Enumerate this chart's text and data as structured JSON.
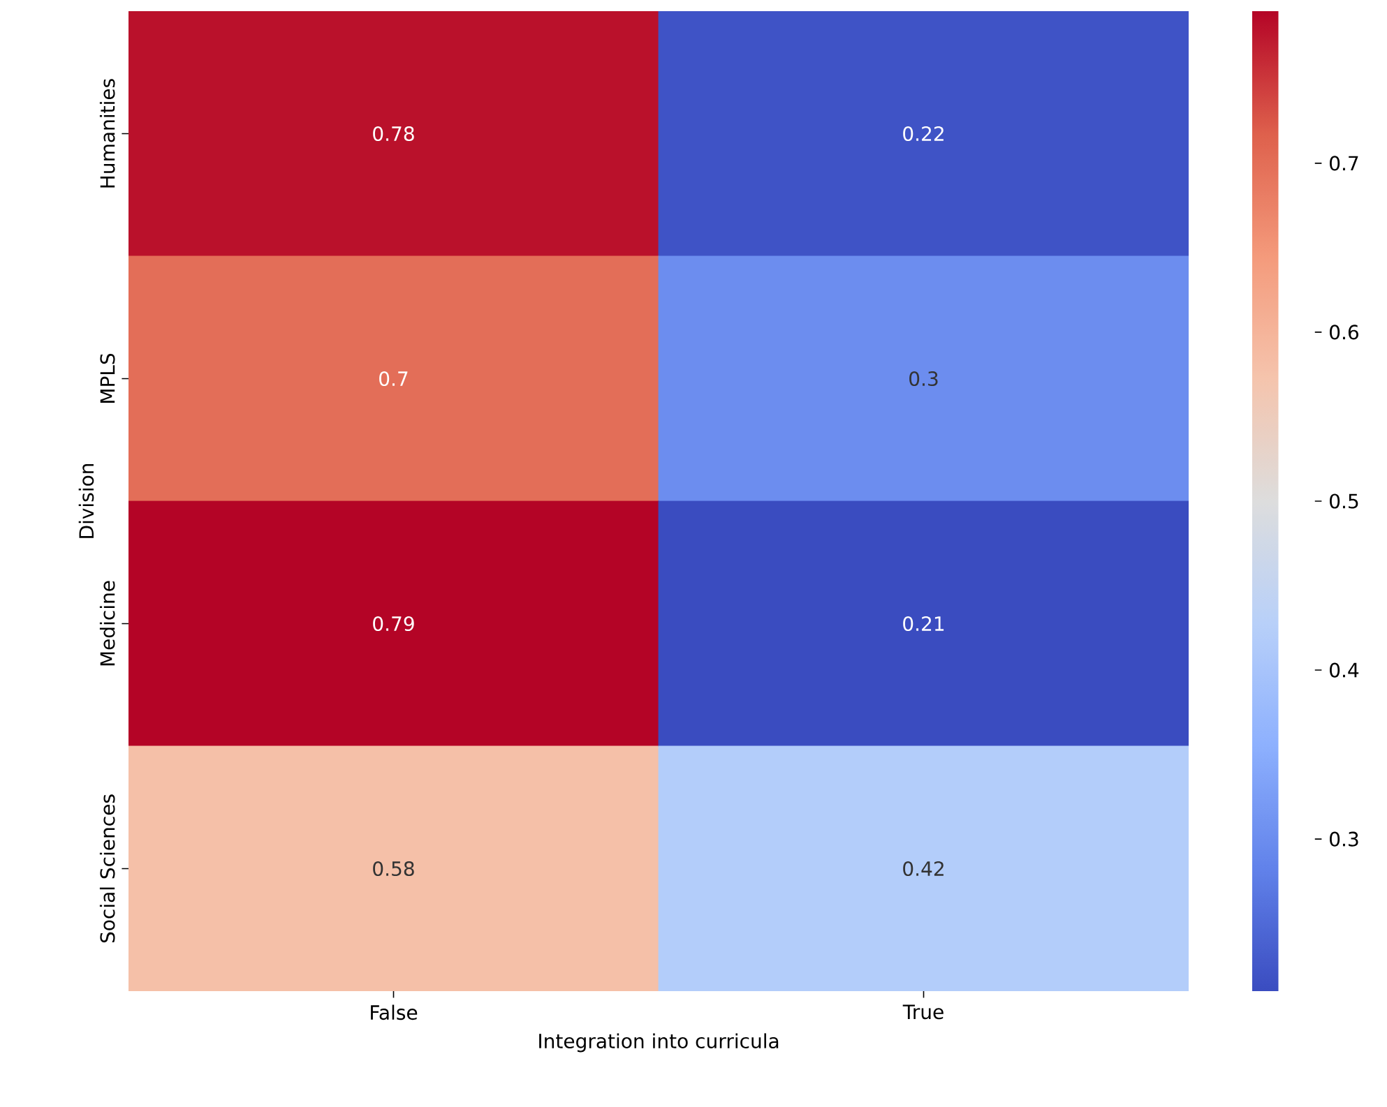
{
  "chart_data": {
    "type": "heatmap",
    "xlabel": "Integration into curricula",
    "ylabel": "Division",
    "categories": [
      "False",
      "True"
    ],
    "y_categories": [
      "Humanities",
      "MPLS",
      "Medicine",
      "Social Sciences"
    ],
    "cells": [
      [
        0.78,
        0.22
      ],
      [
        0.7,
        0.3
      ],
      [
        0.79,
        0.21
      ],
      [
        0.58,
        0.42
      ]
    ],
    "clim": [
      0.21,
      0.79
    ],
    "cticks": [
      0.3,
      0.4,
      0.5,
      0.6,
      0.7
    ],
    "data_labels": true
  }
}
